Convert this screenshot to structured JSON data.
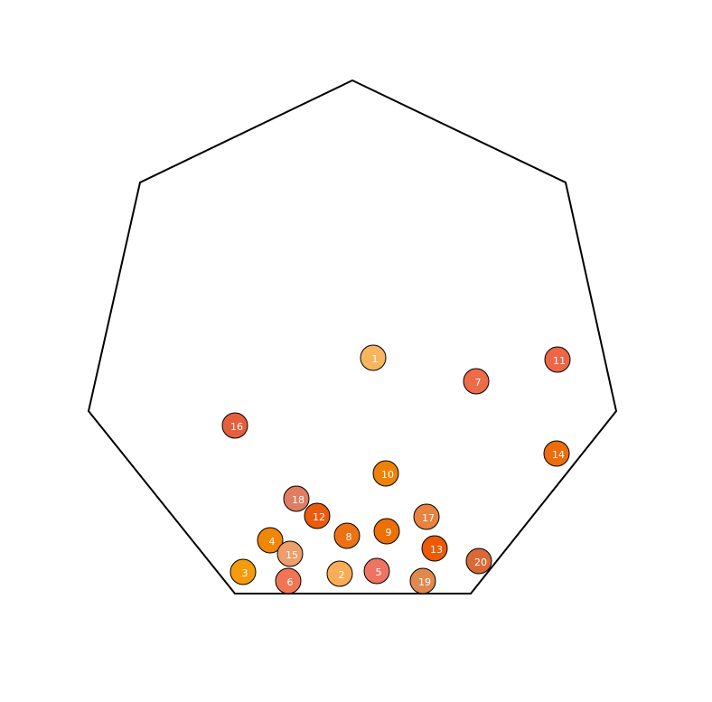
{
  "balls": [
    {
      "label": "1",
      "color": "#f7b560"
    },
    {
      "label": "2",
      "color": "#f8ad56"
    },
    {
      "label": "3",
      "color": "#f39b0a"
    },
    {
      "label": "4",
      "color": "#f18607"
    },
    {
      "label": "5",
      "color": "#ee7360"
    },
    {
      "label": "6",
      "color": "#ef7555"
    },
    {
      "label": "7",
      "color": "#ee6b47"
    },
    {
      "label": "8",
      "color": "#ed7113"
    },
    {
      "label": "9",
      "color": "#ec7003"
    },
    {
      "label": "10",
      "color": "#ee8206"
    },
    {
      "label": "11",
      "color": "#ed6747"
    },
    {
      "label": "12",
      "color": "#ec5a0e"
    },
    {
      "label": "13",
      "color": "#ec5a05"
    },
    {
      "label": "14",
      "color": "#ec6d0a"
    },
    {
      "label": "15",
      "color": "#ed9e6b"
    },
    {
      "label": "16",
      "color": "#e55f3c"
    },
    {
      "label": "17",
      "color": "#e9823f"
    },
    {
      "label": "18",
      "color": "#e07d60"
    },
    {
      "label": "19",
      "color": "#df8850"
    },
    {
      "label": "20",
      "color": "#d96a36"
    }
  ]
}
